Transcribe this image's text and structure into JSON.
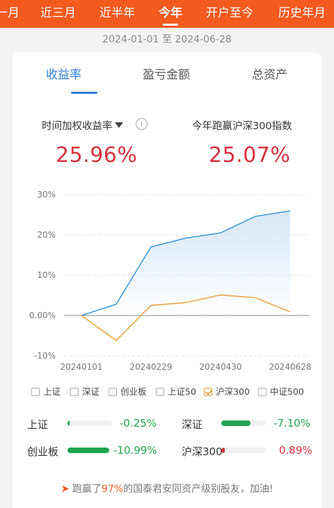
{
  "tabs": [
    "一月",
    "近三月",
    "近半年",
    "今年",
    "开户至今",
    "历史年月"
  ],
  "active_tab": "今年",
  "date_range": "2024-01-01 至 2024-06-28",
  "metric_tabs": [
    "收益率",
    "盈亏金额",
    "总资产"
  ],
  "active_metric": "收益率",
  "left_label": "时间加权收益率",
  "left_value": "25.96%",
  "right_label": "今年跑赢沪深300指数",
  "right_value": "25.07%",
  "colors": {
    "brand": "#f25a1f",
    "accent_blue": "#2f7fd4",
    "account_line": "#3b98d6",
    "index_line": "#e8a23a",
    "up": "#d6313e",
    "down": "#21a551"
  },
  "chart_data": {
    "type": "line",
    "x": [
      "20240101",
      "20240131",
      "20240229",
      "20240329",
      "20240430",
      "20240531",
      "20240628"
    ],
    "xtick_labels": [
      "20240101",
      "20240229",
      "20240430",
      "20240628"
    ],
    "ytick_labels": [
      "30%",
      "20%",
      "10%",
      "0.00%",
      "-10%"
    ],
    "ylim": [
      -10,
      30
    ],
    "series": [
      {
        "values": [
          0,
          2.8,
          17.0,
          19.2,
          20.5,
          24.6,
          25.96
        ],
        "fill": true
      },
      {
        "values": [
          0,
          -6.2,
          2.5,
          3.2,
          5.1,
          4.4,
          0.89
        ],
        "fill": false
      }
    ],
    "grid": "horizontal-dashed"
  },
  "legend_items": [
    {
      "label": "上证",
      "checked": false
    },
    {
      "label": "深证",
      "checked": false
    },
    {
      "label": "创业板",
      "checked": false
    },
    {
      "label": "上证50",
      "checked": false
    },
    {
      "label": "沪深300",
      "checked": true
    },
    {
      "label": "中证500",
      "checked": false
    }
  ],
  "comparisons": [
    {
      "label": "上证",
      "value": "-0.25%",
      "fraction": -0.02
    },
    {
      "label": "深证",
      "value": "-7.10%",
      "fraction": -0.65
    },
    {
      "label": "创业板",
      "value": "-10.99%",
      "fraction": -1.0
    },
    {
      "label": "沪深300",
      "value": "0.89%",
      "fraction": 0.08
    }
  ],
  "footer": {
    "prefix": "跑赢了",
    "pct": "97%",
    "suffix": "的国泰君安同资产级别股友，加油!",
    "icon": "runner-icon"
  }
}
